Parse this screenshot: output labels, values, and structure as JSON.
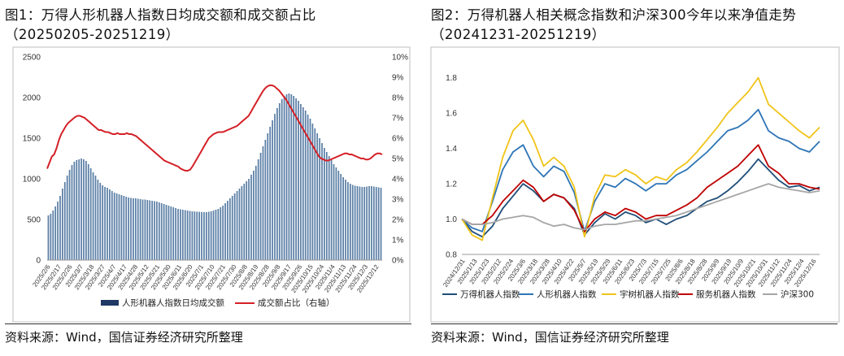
{
  "left": {
    "title_line1": "图1：万得人形机器人指数日均成交额和成交额占比",
    "title_line2": "（20250205-20251219）",
    "source": "资料来源：Wind，国信证券经济研究所整理",
    "chart_data": {
      "type": "bar",
      "left_axis_ticks": [
        "0",
        "500",
        "1000",
        "1500",
        "2000",
        "2500"
      ],
      "right_axis_ticks": [
        "0%",
        "1%",
        "2%",
        "3%",
        "4%",
        "5%",
        "6%",
        "7%",
        "8%",
        "9%",
        "10%"
      ],
      "ylim": [
        0,
        2500
      ],
      "y2lim": [
        0,
        10
      ],
      "date_labels": [
        "2025/2/6",
        "2025/2/17",
        "2025/2/26",
        "2025/3/7",
        "2025/3/18",
        "2025/3/27",
        "2025/4/7",
        "2025/4/17",
        "2025/4/28",
        "2025/5/12",
        "2025/5/21",
        "2025/5/30",
        "2025/6/11",
        "2025/6/20",
        "2025/7/1",
        "2025/7/10",
        "2025/7/21",
        "2025/7/30",
        "2025/8/8",
        "2025/8/19",
        "2025/8/28",
        "2025/9/8",
        "2025/9/17",
        "2025/9/26",
        "2025/10/15",
        "2025/10/24",
        "2025/11/4",
        "2025/11/13",
        "2025/11/24",
        "2025/12/3",
        "2025/12/12"
      ],
      "bar_series_name": "人形机器人指数日均成交额",
      "bar_values": [
        550,
        570,
        610,
        660,
        720,
        790,
        880,
        960,
        1040,
        1110,
        1170,
        1210,
        1230,
        1240,
        1250,
        1240,
        1220,
        1180,
        1130,
        1080,
        1040,
        990,
        950,
        920,
        900,
        890,
        870,
        850,
        830,
        820,
        810,
        800,
        790,
        780,
        770,
        765,
        760,
        760,
        755,
        750,
        745,
        745,
        740,
        735,
        730,
        725,
        720,
        710,
        700,
        690,
        680,
        670,
        660,
        650,
        640,
        630,
        625,
        620,
        615,
        610,
        605,
        600,
        598,
        596,
        594,
        592,
        590,
        590,
        595,
        600,
        610,
        620,
        630,
        650,
        670,
        700,
        730,
        760,
        790,
        820,
        850,
        880,
        910,
        940,
        970,
        1000,
        1050,
        1100,
        1160,
        1240,
        1320,
        1400,
        1480,
        1560,
        1640,
        1720,
        1800,
        1870,
        1930,
        1980,
        2020,
        2040,
        2050,
        2040,
        2020,
        1990,
        1960,
        1920,
        1880,
        1840,
        1790,
        1740,
        1680,
        1620,
        1560,
        1500,
        1440,
        1380,
        1330,
        1280,
        1230,
        1180,
        1140,
        1100,
        1060,
        1020,
        990,
        960,
        940,
        925,
        915,
        910,
        905,
        900,
        900,
        905,
        910,
        910,
        905,
        900,
        895,
        890
      ],
      "line_series_name": "成交额占比（右轴）",
      "line_values": [
        4.5,
        4.8,
        5.1,
        5.2,
        5.5,
        5.9,
        6.2,
        6.4,
        6.6,
        6.75,
        6.85,
        6.95,
        7.05,
        7.1,
        7.1,
        7.05,
        7.0,
        6.9,
        6.8,
        6.7,
        6.6,
        6.5,
        6.4,
        6.4,
        6.35,
        6.3,
        6.3,
        6.25,
        6.2,
        6.2,
        6.25,
        6.2,
        6.2,
        6.2,
        6.25,
        6.2,
        6.2,
        6.15,
        6.1,
        6.0,
        5.9,
        5.8,
        5.7,
        5.6,
        5.5,
        5.4,
        5.3,
        5.2,
        5.1,
        5.0,
        4.9,
        4.85,
        4.8,
        4.75,
        4.7,
        4.65,
        4.6,
        4.5,
        4.45,
        4.4,
        4.4,
        4.45,
        4.6,
        4.8,
        5.0,
        5.2,
        5.4,
        5.6,
        5.8,
        6.0,
        6.1,
        6.2,
        6.25,
        6.3,
        6.3,
        6.3,
        6.35,
        6.4,
        6.45,
        6.5,
        6.55,
        6.6,
        6.7,
        6.8,
        6.9,
        7.0,
        7.1,
        7.3,
        7.5,
        7.7,
        7.9,
        8.1,
        8.3,
        8.45,
        8.55,
        8.6,
        8.6,
        8.55,
        8.45,
        8.35,
        8.2,
        8.05,
        7.9,
        7.7,
        7.5,
        7.3,
        7.1,
        6.9,
        6.7,
        6.5,
        6.3,
        6.1,
        5.9,
        5.7,
        5.5,
        5.3,
        5.1,
        5.0,
        4.95,
        4.9,
        4.9,
        4.95,
        5.0,
        5.05,
        5.1,
        5.15,
        5.2,
        5.25,
        5.25,
        5.2,
        5.2,
        5.15,
        5.1,
        5.05,
        5.0,
        5.0,
        4.95,
        4.95,
        5.0,
        5.1,
        5.2,
        5.25,
        5.25,
        5.2
      ]
    }
  },
  "right": {
    "title_line1": "图2：万得机器人相关概念指数和沪深300今年以来净值走势",
    "title_line2": "（20241231-20251219）",
    "source": "资料来源：Wind，国信证券经济研究所整理",
    "chart_data": {
      "type": "line",
      "y_ticks": [
        "0.8",
        "1.0",
        "1.2",
        "1.4",
        "1.6",
        "1.8"
      ],
      "ylim": [
        0.8,
        1.9
      ],
      "date_labels": [
        "2024/12/31",
        "2025/1/13",
        "2025/1/23",
        "2025/2/12",
        "2025/2/24",
        "2025/3/6",
        "2025/3/18",
        "2025/3/28",
        "2025/4/10",
        "2025/4/22",
        "2025/5/7",
        "2025/5/19",
        "2025/5/29",
        "2025/6/11",
        "2025/6/23",
        "2025/7/3",
        "2025/7/15",
        "2025/7/25",
        "2025/8/6",
        "2025/8/18",
        "2025/8/28",
        "2025/9/9",
        "2025/9/19",
        "2025/10/9",
        "2025/10/21",
        "2025/10/31",
        "2025/11/12",
        "2025/11/24",
        "2025/12/4",
        "2025/12/16"
      ],
      "series": [
        {
          "name": "万得机器人指数",
          "color": "#1f4e79",
          "values": [
            1.0,
            0.93,
            0.9,
            0.96,
            1.06,
            1.13,
            1.2,
            1.16,
            1.1,
            1.14,
            1.12,
            1.06,
            0.91,
            0.98,
            1.03,
            1.0,
            1.04,
            1.02,
            0.98,
            1.0,
            0.97,
            1.0,
            1.02,
            1.06,
            1.1,
            1.12,
            1.16,
            1.21,
            1.27,
            1.34,
            1.28,
            1.22,
            1.18,
            1.19,
            1.16,
            1.18
          ]
        },
        {
          "name": "人形机器人指数",
          "color": "#2e75b6",
          "values": [
            1.0,
            0.95,
            0.93,
            1.1,
            1.28,
            1.38,
            1.42,
            1.3,
            1.24,
            1.3,
            1.27,
            1.15,
            0.93,
            1.1,
            1.2,
            1.18,
            1.23,
            1.2,
            1.16,
            1.2,
            1.2,
            1.25,
            1.28,
            1.33,
            1.38,
            1.44,
            1.5,
            1.52,
            1.56,
            1.62,
            1.5,
            1.46,
            1.44,
            1.4,
            1.38,
            1.44
          ]
        },
        {
          "name": "宇树机器人指数",
          "color": "#f0c419",
          "values": [
            1.0,
            0.91,
            0.88,
            1.12,
            1.35,
            1.5,
            1.56,
            1.45,
            1.3,
            1.35,
            1.3,
            1.18,
            0.9,
            1.13,
            1.25,
            1.24,
            1.28,
            1.25,
            1.2,
            1.24,
            1.22,
            1.28,
            1.32,
            1.38,
            1.45,
            1.52,
            1.6,
            1.66,
            1.72,
            1.8,
            1.65,
            1.6,
            1.55,
            1.5,
            1.46,
            1.52
          ]
        },
        {
          "name": "服务机器人指数",
          "color": "#c00000",
          "values": [
            1.0,
            0.97,
            0.97,
            1.02,
            1.1,
            1.16,
            1.22,
            1.18,
            1.1,
            1.14,
            1.12,
            1.05,
            0.93,
            1.0,
            1.04,
            1.02,
            1.06,
            1.04,
            1.0,
            1.02,
            1.02,
            1.05,
            1.08,
            1.12,
            1.18,
            1.22,
            1.26,
            1.3,
            1.36,
            1.42,
            1.3,
            1.26,
            1.2,
            1.2,
            1.18,
            1.17
          ]
        },
        {
          "name": "沪深300",
          "color": "#a6a6a6",
          "values": [
            1.0,
            0.97,
            0.97,
            0.98,
            1.0,
            1.01,
            1.02,
            1.01,
            0.98,
            0.96,
            0.97,
            0.95,
            0.94,
            0.96,
            0.97,
            0.97,
            0.98,
            0.99,
            0.99,
            1.0,
            1.01,
            1.02,
            1.04,
            1.06,
            1.08,
            1.1,
            1.12,
            1.14,
            1.16,
            1.18,
            1.2,
            1.18,
            1.17,
            1.16,
            1.15,
            1.16
          ]
        }
      ]
    }
  }
}
